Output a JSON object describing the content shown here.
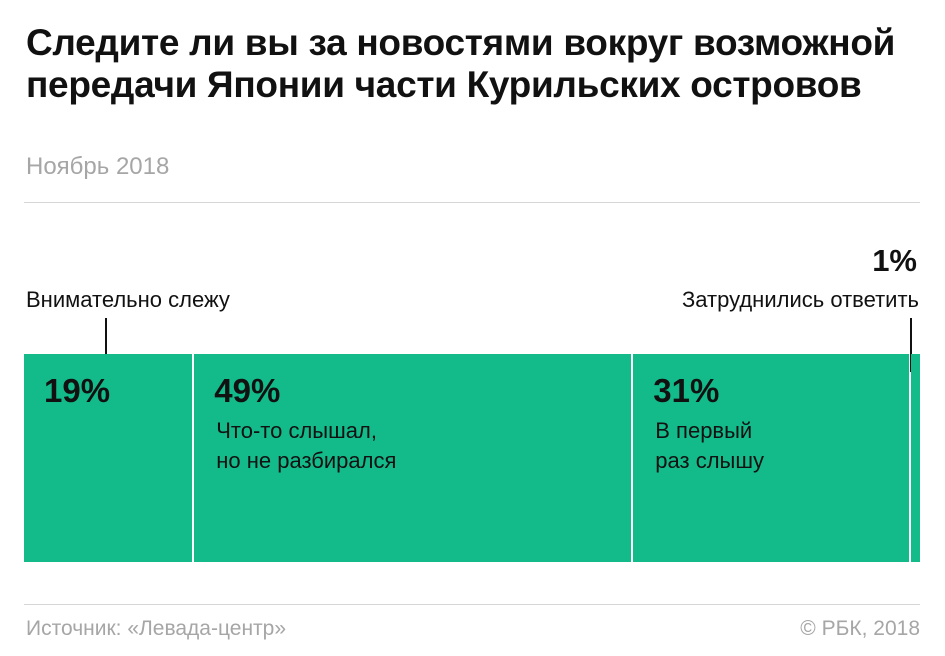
{
  "title": "Следите ли вы за новостями вокруг возможной передачи Японии части Курильских островов",
  "subtitle": "Ноябрь 2018",
  "source": "Источник: «Левада-центр»",
  "copyright": "© РБК, 2018",
  "accent_color": "#13bb8a",
  "chart_data": {
    "type": "bar",
    "orientation": "stacked-horizontal-100",
    "unit": "%",
    "categories": [
      "Внимательно слежу",
      "Что-то слышал, но не разбирался",
      "В первый раз слышу",
      "Затруднились ответить"
    ],
    "values": [
      19,
      49,
      31,
      1
    ],
    "value_labels": [
      "19%",
      "49%",
      "31%",
      "1%"
    ],
    "segments": [
      {
        "value": 19,
        "value_label": "19%",
        "label": "Внимательно слежу",
        "label_placement": "outside-above"
      },
      {
        "value": 49,
        "value_label": "49%",
        "label": "Что-то слышал,\nно не разбирался",
        "label_placement": "inside"
      },
      {
        "value": 31,
        "value_label": "31%",
        "label": "В первый\nраз слышу",
        "label_placement": "inside"
      },
      {
        "value": 1,
        "value_label": "1%",
        "label": "Затруднились ответить",
        "label_placement": "outside-above"
      }
    ],
    "grid": false,
    "legend": "none"
  }
}
